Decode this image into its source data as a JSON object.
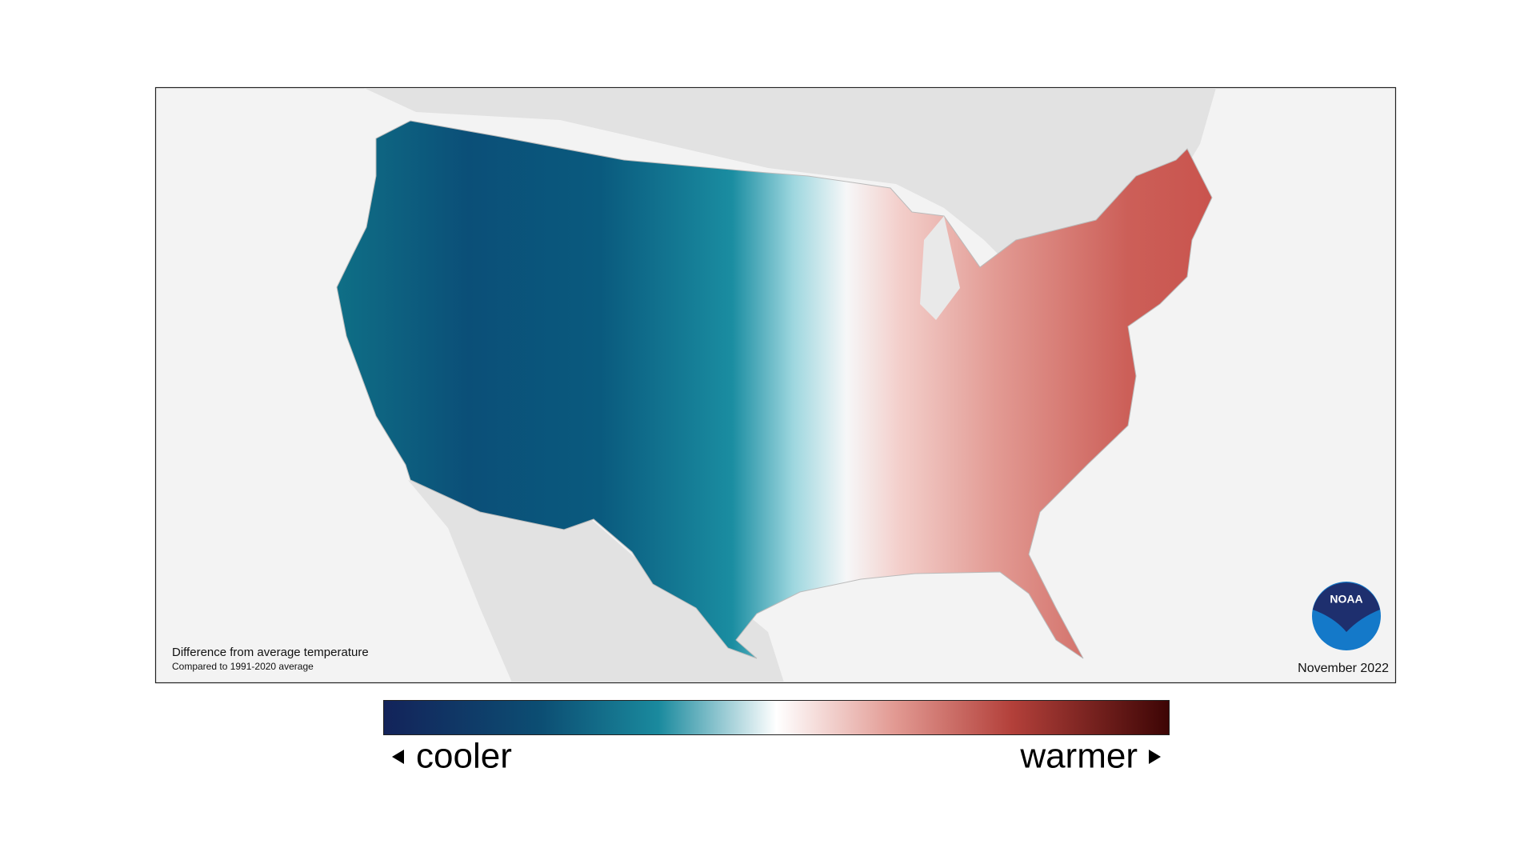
{
  "map": {
    "caption": "Difference from average temperature",
    "note": "Compared to 1991-2020 average",
    "date": "November 2022",
    "logo": "NOAA"
  },
  "legend": {
    "low": "cooler",
    "high": "warmer"
  }
}
